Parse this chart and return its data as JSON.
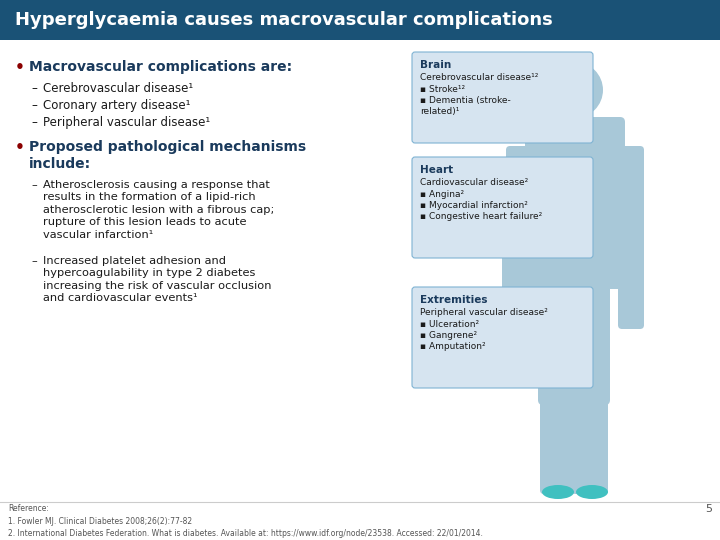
{
  "title": "Hyperglycaemia causes macrovascular complications",
  "title_bg": "#1a5276",
  "title_color": "#ffffff",
  "slide_bg": "#f2f2f2",
  "bullet_color": "#8b0000",
  "heading_color": "#1a3a5c",
  "body_color": "#1a1a1a",
  "box_bg": "#d6e4f0",
  "box_border": "#7fb3d3",
  "body_silhouette_color": "#a8c8d8",
  "brain_box": {
    "title": "Brain",
    "subtitle": "Cerebrovascular disease¹²",
    "items": [
      "Stroke¹²",
      "Dementia (stroke-\nrelated)¹"
    ]
  },
  "heart_box": {
    "title": "Heart",
    "subtitle": "Cardiovascular disease²",
    "items": [
      "Angina²",
      "Myocardial infarction²",
      "Congestive heart failure²"
    ]
  },
  "extremities_box": {
    "title": "Extremities",
    "subtitle": "Peripheral vascular disease²",
    "items": [
      "Ulceration²",
      "Gangrene²",
      "Amputation²"
    ]
  },
  "reference_text": "Reference:\n1. Fowler MJ. Clinical Diabetes 2008;26(2):77-82\n2. International Diabetes Federation. What is diabetes. Available at: https://www.idf.org/node/23538. Accessed: 22/01/2014.",
  "page_number": "5"
}
